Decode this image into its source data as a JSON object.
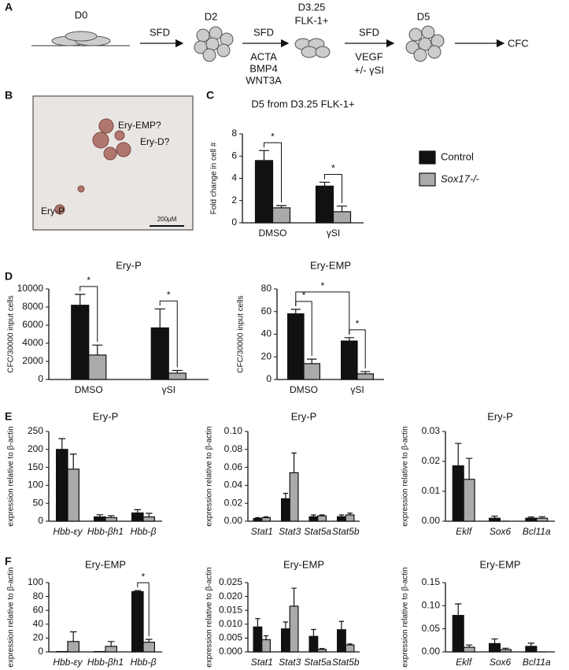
{
  "panels": [
    "A",
    "B",
    "C",
    "D",
    "E",
    "F"
  ],
  "schematic": {
    "d0": "D0",
    "sfd1": "SFD",
    "d2": "D2",
    "sfd2": "SFD",
    "factors1": [
      "ACTA",
      "BMP4",
      "WNT3A"
    ],
    "d325": "D3.25",
    "flk": "FLK-1+",
    "sfd3": "SFD",
    "factors2": [
      "VEGF",
      "+/- γSI"
    ],
    "d5": "D5",
    "cfc": "CFC"
  },
  "image": {
    "labels": [
      "Ery-EMP?",
      "Ery-D?",
      "Ery-P"
    ],
    "scale_bar": "200μM"
  },
  "chart_data": [
    {
      "type": "bar",
      "title": "D5 from D3.25 FLK-1+",
      "y_label": "Fold change in cell #",
      "categories": [
        "DMSO",
        "γSI"
      ],
      "series": [
        {
          "name": "Control",
          "color": "#111111",
          "values": [
            5.6,
            3.3
          ],
          "errors": [
            0.9,
            0.35
          ]
        },
        {
          "name": "Sox17-/-",
          "color": "#aaaaaa",
          "values": [
            1.35,
            1.0
          ],
          "errors": [
            0.2,
            0.5
          ]
        }
      ],
      "ylim": [
        0,
        8
      ],
      "yticks": [
        0,
        2,
        4,
        6,
        8
      ],
      "legend": "right",
      "significance": [
        {
          "label": "*",
          "pair": [
            [
              0,
              0
            ],
            [
              1,
              0
            ]
          ]
        },
        {
          "label": "*",
          "pair": [
            [
              0,
              1
            ],
            [
              1,
              1
            ]
          ]
        }
      ]
    },
    {
      "type": "bar",
      "title": "Ery-P",
      "y_label": "CFC/30000 input cells",
      "categories": [
        "DMSO",
        "γSI"
      ],
      "series": [
        {
          "color": "#111111",
          "values": [
            8200,
            5700
          ],
          "errors": [
            1200,
            2100
          ]
        },
        {
          "color": "#aaaaaa",
          "values": [
            2700,
            700
          ],
          "errors": [
            1100,
            300
          ]
        }
      ],
      "ylim": [
        0,
        10000
      ],
      "yticks": [
        0,
        2000,
        4000,
        6000,
        8000,
        10000
      ],
      "significance": [
        {
          "label": "*",
          "pair": [
            [
              0,
              0
            ],
            [
              1,
              0
            ]
          ]
        },
        {
          "label": "*",
          "pair": [
            [
              0,
              1
            ],
            [
              1,
              1
            ]
          ]
        }
      ]
    },
    {
      "type": "bar",
      "title": "Ery-EMP",
      "y_label": "CFC/30000 input cells",
      "categories": [
        "DMSO",
        "γSI"
      ],
      "series": [
        {
          "color": "#111111",
          "values": [
            58,
            34
          ],
          "errors": [
            4,
            3
          ]
        },
        {
          "color": "#aaaaaa",
          "values": [
            14,
            5
          ],
          "errors": [
            4,
            2
          ]
        }
      ],
      "ylim": [
        0,
        80
      ],
      "yticks": [
        0,
        20,
        40,
        60,
        80
      ],
      "significance": [
        {
          "label": "*",
          "pair": [
            [
              0,
              0
            ],
            [
              1,
              0
            ]
          ]
        },
        {
          "label": "*",
          "pair": [
            [
              0,
              1
            ],
            [
              1,
              1
            ]
          ]
        },
        {
          "label": "*",
          "pair": [
            [
              0,
              0
            ],
            [
              0,
              1
            ]
          ]
        }
      ]
    },
    {
      "type": "bar",
      "title": "Ery-P",
      "y_label": "expression relative to β-actin",
      "categories": [
        "Hbb-εy",
        "Hbb-βh1",
        "Hbb-β"
      ],
      "italic_categories": true,
      "series": [
        {
          "color": "#111111",
          "values": [
            200,
            12,
            23
          ],
          "errors": [
            30,
            6,
            9
          ]
        },
        {
          "color": "#aaaaaa",
          "values": [
            145,
            10,
            12
          ],
          "errors": [
            42,
            5,
            10
          ]
        }
      ],
      "ylim": [
        0,
        250
      ],
      "yticks": [
        0,
        50,
        100,
        150,
        200,
        250
      ],
      "significance": []
    },
    {
      "type": "bar",
      "title": "Ery-P",
      "y_label": "expression relative to β-actin",
      "categories": [
        "Stat1",
        "Stat3",
        "Stat5a",
        "Stat5b"
      ],
      "italic_categories": true,
      "series": [
        {
          "color": "#111111",
          "values": [
            0.003,
            0.025,
            0.005,
            0.005
          ],
          "errors": [
            0.001,
            0.006,
            0.002,
            0.002
          ]
        },
        {
          "color": "#aaaaaa",
          "values": [
            0.004,
            0.054,
            0.006,
            0.007
          ],
          "errors": [
            0.001,
            0.022,
            0.001,
            0.002
          ]
        }
      ],
      "ylim": [
        0,
        0.1
      ],
      "yticks": [
        {
          "value": 0,
          "label": "0.00"
        },
        {
          "value": 0.02,
          "label": "0.02"
        },
        {
          "value": 0.04,
          "label": "0.04"
        },
        {
          "value": 0.06,
          "label": "0.06"
        },
        {
          "value": 0.08,
          "label": "0.08"
        },
        {
          "value": 0.1,
          "label": "0.10"
        }
      ],
      "significance": []
    },
    {
      "type": "bar",
      "title": "Ery-P",
      "y_label": "expression relative to β-actin",
      "categories": [
        "Eklf",
        "Sox6",
        "Bcl11a"
      ],
      "italic_categories": true,
      "series": [
        {
          "color": "#111111",
          "values": [
            0.0185,
            0.001,
            0.001
          ],
          "errors": [
            0.0075,
            0.0007,
            0.0004
          ]
        },
        {
          "color": "#aaaaaa",
          "values": [
            0.014,
            0,
            0.001
          ],
          "errors": [
            0.007,
            0,
            0.0005
          ]
        }
      ],
      "ylim": [
        0,
        0.03
      ],
      "yticks": [
        {
          "value": 0,
          "label": "0.00"
        },
        0.01,
        0.02,
        0.03
      ],
      "significance": []
    },
    {
      "type": "bar",
      "title": "Ery-EMP",
      "y_label": "expression relative to β-actin",
      "categories": [
        "Hbb-εy",
        "Hbb-βh1",
        "Hbb-β"
      ],
      "italic_categories": true,
      "series": [
        {
          "color": "#111111",
          "values": [
            0.5,
            0.5,
            87
          ],
          "errors": [
            0,
            0,
            1.5
          ]
        },
        {
          "color": "#aaaaaa",
          "values": [
            15,
            8,
            14
          ],
          "errors": [
            14,
            7,
            4
          ]
        }
      ],
      "ylim": [
        0,
        100
      ],
      "yticks": [
        0,
        20,
        40,
        60,
        80,
        100
      ],
      "significance": [
        {
          "label": "*",
          "pair": [
            [
              0,
              2
            ],
            [
              1,
              2
            ]
          ]
        }
      ]
    },
    {
      "type": "bar",
      "title": "Ery-EMP",
      "y_label": "expression relative to β-actin",
      "categories": [
        "Stat1",
        "Stat3",
        "Stat5a",
        "Stat5b"
      ],
      "italic_categories": true,
      "series": [
        {
          "color": "#111111",
          "values": [
            0.009,
            0.0083,
            0.0056,
            0.008
          ],
          "errors": [
            0.003,
            0.0025,
            0.0025,
            0.003
          ]
        },
        {
          "color": "#aaaaaa",
          "values": [
            0.0044,
            0.0165,
            0.0009,
            0.0025
          ],
          "errors": [
            0.0014,
            0.0065,
            0.0003,
            0.0004
          ]
        }
      ],
      "ylim": [
        0,
        0.025
      ],
      "yticks": [
        {
          "value": 0,
          "label": "0.000"
        },
        0.005,
        {
          "value": 0.01,
          "label": "0.010"
        },
        0.015,
        {
          "value": 0.02,
          "label": "0.020"
        },
        0.025
      ],
      "significance": []
    },
    {
      "type": "bar",
      "title": "Ery-EMP",
      "y_label": "expression relative to β-actin",
      "categories": [
        "Eklf",
        "Sox6",
        "Bcl11a"
      ],
      "italic_categories": true,
      "series": [
        {
          "color": "#111111",
          "values": [
            0.079,
            0.018,
            0.012
          ],
          "errors": [
            0.025,
            0.01,
            0.007
          ]
        },
        {
          "color": "#aaaaaa",
          "values": [
            0.01,
            0.005,
            0
          ],
          "errors": [
            0.005,
            0.003,
            0
          ]
        }
      ],
      "ylim": [
        0,
        0.15
      ],
      "yticks": [
        {
          "value": 0,
          "label": "0.00"
        },
        0.05,
        {
          "value": 0.1,
          "label": "0.10"
        },
        0.15
      ],
      "significance": []
    }
  ]
}
